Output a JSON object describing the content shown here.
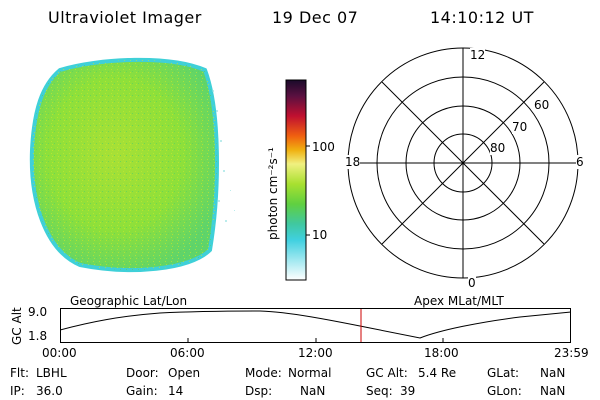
{
  "header": {
    "instrument": "Ultraviolet Imager",
    "date": "19 Dec 07",
    "time": "14:10:12 UT"
  },
  "colorbar": {
    "unit_label": "photon cm⁻²s⁻¹",
    "tick_labels": [
      "100",
      "10"
    ]
  },
  "polar_plot": {
    "mlt_labels": {
      "top": "12",
      "left": "18",
      "right": "6",
      "bottom": "0"
    },
    "lat_labels": [
      "60",
      "70",
      "80"
    ]
  },
  "timeline": {
    "left_title": "Geographic Lat/Lon",
    "right_title": "Apex MLat/MLT",
    "axis_label": "GC Alt",
    "y_max_label": "9.0",
    "y_min_label": "1.8",
    "time_labels": [
      "00:00",
      "06:00",
      "12:00",
      "18:00",
      "23:59"
    ]
  },
  "info": {
    "filter_label": "Flt:",
    "filter_value": "LBHL",
    "ip_label": "IP:",
    "ip_value": "36.0",
    "door_label": "Door:",
    "door_value": "Open",
    "gain_label": "Gain:",
    "gain_value": "14",
    "mode_label": "Mode:",
    "mode_value": "Normal",
    "dsp_label": "Dsp:",
    "dsp_value": "NaN",
    "gcalt_label": "GC Alt:",
    "gcalt_value": "5.4 Re",
    "seq_label": "Seq:",
    "seq_value": "39",
    "glat_label": "GLat:",
    "glat_value": "NaN",
    "glon_label": "GLon:",
    "glon_value": "NaN"
  },
  "colors": {
    "image_main": "#8ee03a",
    "image_edge": "#3fd0d8",
    "orbit_marker": "#cc0000"
  }
}
